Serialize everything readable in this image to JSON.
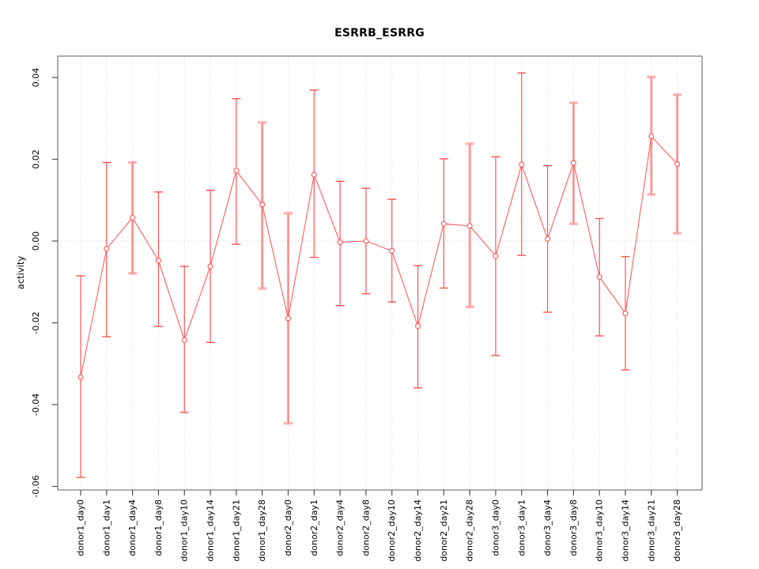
{
  "chart_data": {
    "type": "scatter",
    "title": "ESRRB_ESRRG",
    "ylabel": "activity",
    "xlabel": "",
    "legend": "none",
    "grid": "vertical dotted gridline at every category; dotted horizontal line at y=0",
    "ylim": [
      -0.062,
      0.045
    ],
    "yticks": [
      {
        "label": "0.04",
        "value": 0.04
      },
      {
        "label": "0.02",
        "value": 0.02
      },
      {
        "label": "0.00",
        "value": 0.0
      },
      {
        "label": "-0.02",
        "value": -0.02
      },
      {
        "label": "-0.04",
        "value": -0.04
      },
      {
        "label": "-0.06",
        "value": -0.06
      }
    ],
    "categories": [
      "donor1_day0",
      "donor1_day1",
      "donor1_day4",
      "donor1_day8",
      "donor1_day10",
      "donor1_day14",
      "donor1_day21",
      "donor1_day28",
      "donor2_day0",
      "donor2_day1",
      "donor2_day4",
      "donor2_day8",
      "donor2_day10",
      "donor2_day14",
      "donor2_day21",
      "donor2_day28",
      "donor3_day0",
      "donor3_day1",
      "donor3_day4",
      "donor3_day8",
      "donor3_day10",
      "donor3_day14",
      "donor3_day21",
      "donor3_day28"
    ],
    "series": [
      {
        "name": "activity",
        "marker": "open-circle",
        "means": [
          -0.0333,
          -0.0019,
          0.0057,
          -0.0048,
          -0.0242,
          -0.0062,
          0.0172,
          0.0089,
          -0.0189,
          0.0162,
          -0.0003,
          0.0,
          -0.0024,
          -0.0208,
          0.0042,
          0.0037,
          -0.0037,
          0.0187,
          0.0005,
          0.0191,
          -0.0088,
          -0.0177,
          0.0256,
          0.0188
        ],
        "lower": [
          -0.0578,
          -0.0234,
          -0.0079,
          -0.0209,
          -0.0419,
          -0.0248,
          -0.0008,
          -0.0116,
          -0.0446,
          -0.004,
          -0.0158,
          -0.0129,
          -0.0149,
          -0.0359,
          -0.0115,
          -0.0161,
          -0.028,
          -0.0035,
          -0.0174,
          0.0042,
          -0.0232,
          -0.0315,
          0.0114,
          0.0019
        ],
        "upper": [
          -0.0085,
          0.0192,
          0.0192,
          0.012,
          -0.0062,
          0.0124,
          0.0348,
          0.029,
          0.0068,
          0.0369,
          0.0146,
          0.0129,
          0.0102,
          -0.006,
          0.0201,
          0.0238,
          0.0206,
          0.0411,
          0.0184,
          0.0338,
          0.0055,
          -0.0038,
          0.0401,
          0.0358
        ]
      }
    ],
    "soft_bar_indices": [
      2,
      7,
      8,
      15,
      19,
      22,
      23
    ],
    "colors": {
      "point": "#ff5252",
      "line": "#ff5c5c",
      "soft_bar": "#ffafaf",
      "box": "#8c8c8c",
      "tick": "#4d4d4d",
      "grid": "#dcdcdc",
      "text": "#000000"
    }
  }
}
